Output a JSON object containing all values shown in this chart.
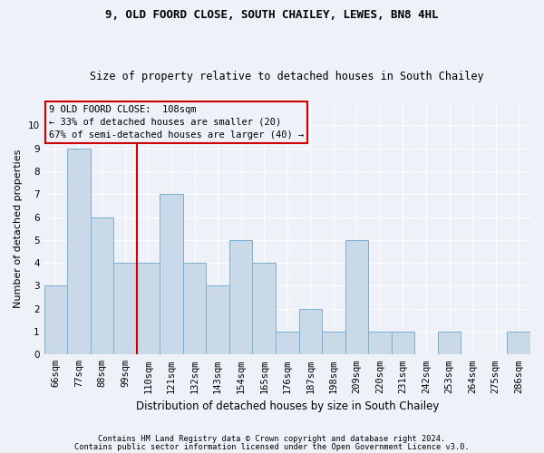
{
  "title": "9, OLD FOORD CLOSE, SOUTH CHAILEY, LEWES, BN8 4HL",
  "subtitle": "Size of property relative to detached houses in South Chailey",
  "xlabel": "Distribution of detached houses by size in South Chailey",
  "ylabel": "Number of detached properties",
  "categories": [
    "66sqm",
    "77sqm",
    "88sqm",
    "99sqm",
    "110sqm",
    "121sqm",
    "132sqm",
    "143sqm",
    "154sqm",
    "165sqm",
    "176sqm",
    "187sqm",
    "198sqm",
    "209sqm",
    "220sqm",
    "231sqm",
    "242sqm",
    "253sqm",
    "264sqm",
    "275sqm",
    "286sqm"
  ],
  "values": [
    3,
    9,
    6,
    4,
    4,
    7,
    4,
    3,
    5,
    4,
    1,
    2,
    1,
    5,
    1,
    1,
    0,
    1,
    0,
    0,
    1
  ],
  "bar_color": "#c9d9e8",
  "bar_edge_color": "#7bafd4",
  "vline_index": 4,
  "vline_color": "#cc0000",
  "annotation_line1": "9 OLD FOORD CLOSE:  108sqm",
  "annotation_line2": "← 33% of detached houses are smaller (20)",
  "annotation_line3": "67% of semi-detached houses are larger (40) →",
  "annotation_box_color": "#cc0000",
  "ylim": [
    0,
    11
  ],
  "yticks": [
    0,
    1,
    2,
    3,
    4,
    5,
    6,
    7,
    8,
    9,
    10
  ],
  "footnote1": "Contains HM Land Registry data © Crown copyright and database right 2024.",
  "footnote2": "Contains public sector information licensed under the Open Government Licence v3.0.",
  "bg_color": "#eef2f8",
  "grid_color": "#ffffff",
  "title_fontsize": 9,
  "subtitle_fontsize": 8.5,
  "tick_fontsize": 7.5,
  "ylabel_fontsize": 8,
  "xlabel_fontsize": 8.5
}
